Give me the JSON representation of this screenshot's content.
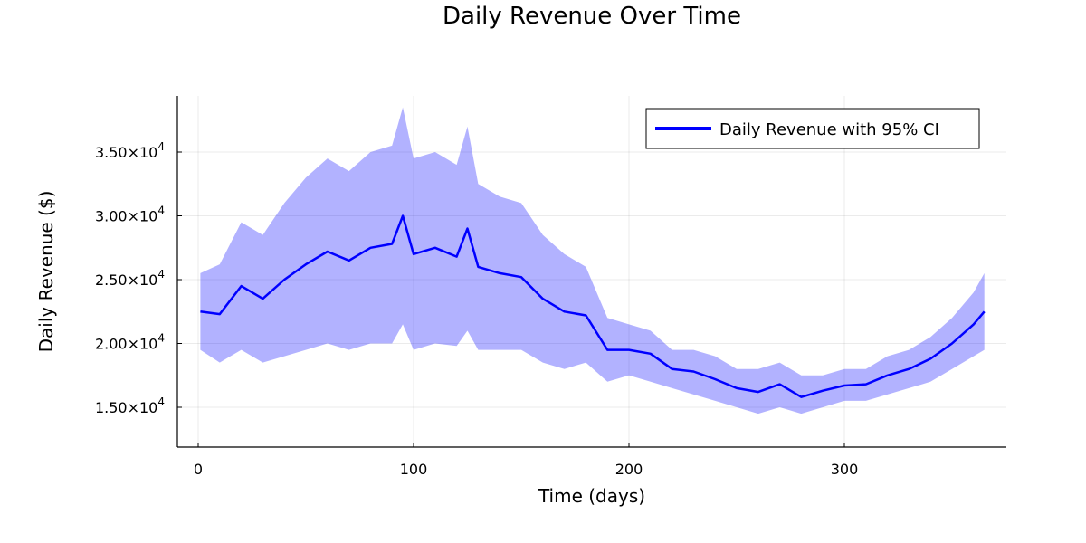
{
  "chart_data": {
    "type": "line",
    "title": "Daily Revenue Over Time",
    "xlabel": "Time (days)",
    "ylabel": "Daily Revenue ($)",
    "xlim": [
      1,
      365
    ],
    "ylim": [
      12000,
      39000
    ],
    "x_ticks": [
      0,
      100,
      200,
      300
    ],
    "y_ticks": [
      {
        "value": 15000,
        "mantissa": "1.50×10",
        "exponent": "4"
      },
      {
        "value": 20000,
        "mantissa": "2.00×10",
        "exponent": "4"
      },
      {
        "value": 25000,
        "mantissa": "2.50×10",
        "exponent": "4"
      },
      {
        "value": 30000,
        "mantissa": "3.00×10",
        "exponent": "4"
      },
      {
        "value": 35000,
        "mantissa": "3.50×10",
        "exponent": "4"
      }
    ],
    "grid": true,
    "legend_position": "top-right",
    "series": [
      {
        "name": "Daily Revenue with 95% CI",
        "color": "#0000ff",
        "band_color": "#0000ff",
        "x": [
          1,
          10,
          20,
          30,
          40,
          50,
          60,
          70,
          80,
          90,
          95,
          100,
          110,
          120,
          125,
          130,
          140,
          150,
          160,
          170,
          180,
          190,
          200,
          210,
          220,
          230,
          240,
          250,
          260,
          270,
          280,
          290,
          300,
          310,
          320,
          330,
          340,
          350,
          360,
          365
        ],
        "y": [
          22500,
          22300,
          24500,
          23500,
          25000,
          26200,
          27200,
          26500,
          27500,
          27800,
          30000,
          27000,
          27500,
          26800,
          29000,
          26000,
          25500,
          25200,
          23500,
          22500,
          22200,
          19500,
          19500,
          19200,
          18000,
          17800,
          17200,
          16500,
          16200,
          16800,
          15800,
          16300,
          16700,
          16800,
          17500,
          18000,
          18800,
          20000,
          21500,
          22500
        ],
        "lower": [
          19500,
          18500,
          19500,
          18500,
          19000,
          19500,
          20000,
          19500,
          20000,
          20000,
          21500,
          19500,
          20000,
          19800,
          21000,
          19500,
          19500,
          19500,
          18500,
          18000,
          18500,
          17000,
          17500,
          17000,
          16500,
          16000,
          15500,
          15000,
          14500,
          15000,
          14500,
          15000,
          15500,
          15500,
          16000,
          16500,
          17000,
          18000,
          19000,
          19500
        ],
        "upper": [
          25500,
          26200,
          29500,
          28500,
          31000,
          33000,
          34500,
          33500,
          35000,
          35500,
          38500,
          34500,
          35000,
          34000,
          37000,
          32500,
          31500,
          31000,
          28500,
          27000,
          26000,
          22000,
          21500,
          21000,
          19500,
          19500,
          19000,
          18000,
          18000,
          18500,
          17500,
          17500,
          18000,
          18000,
          19000,
          19500,
          20500,
          22000,
          24000,
          25500
        ]
      }
    ]
  }
}
